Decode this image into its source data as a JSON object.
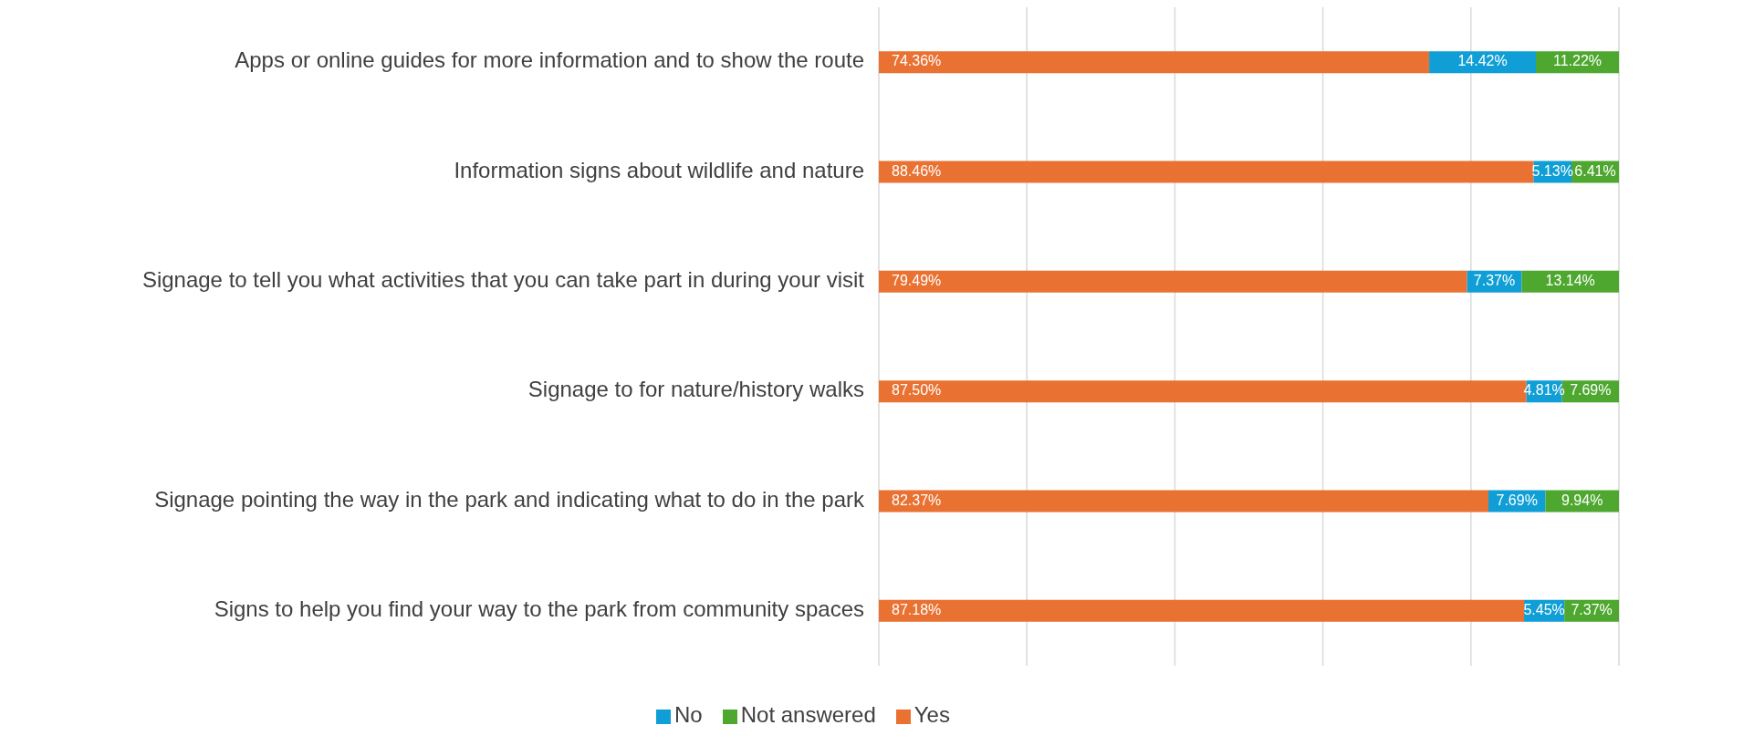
{
  "chart_data": {
    "type": "bar",
    "orientation": "horizontal",
    "stacked": true,
    "categories": [
      "Apps or online guides for more information and to show the route",
      "Information signs about wildlife and nature",
      "Signage to tell you what activities that you can take part in during your visit",
      "Signage to for nature/history walks",
      "Signage pointing the way in the park and indicating what to do in the park",
      "Signs to help you find your way to the park from community spaces"
    ],
    "series": [
      {
        "name": "Yes",
        "color": "#e97132",
        "values": [
          74.36,
          88.46,
          79.49,
          87.5,
          82.37,
          87.18
        ],
        "value_labels": [
          "74.36%",
          "88.46%",
          "79.49%",
          "87.50%",
          "82.37%",
          "87.18%"
        ]
      },
      {
        "name": "No",
        "color": "#0f9ed5",
        "values": [
          14.42,
          5.13,
          7.37,
          4.81,
          7.69,
          5.45
        ],
        "value_labels": [
          "14.42%",
          "5.13%",
          "7.37%",
          "4.81%",
          "7.69%",
          "5.45%"
        ]
      },
      {
        "name": "Not answered",
        "color": "#4ea72e",
        "values": [
          11.22,
          6.41,
          13.14,
          7.69,
          9.94,
          7.37
        ],
        "value_labels": [
          "11.22%",
          "6.41%",
          "13.14%",
          "7.69%",
          "9.94%",
          "7.37%"
        ]
      }
    ],
    "xlim": [
      0,
      100
    ],
    "grid": "x",
    "legend": "bottom",
    "tick_labels": "y"
  }
}
